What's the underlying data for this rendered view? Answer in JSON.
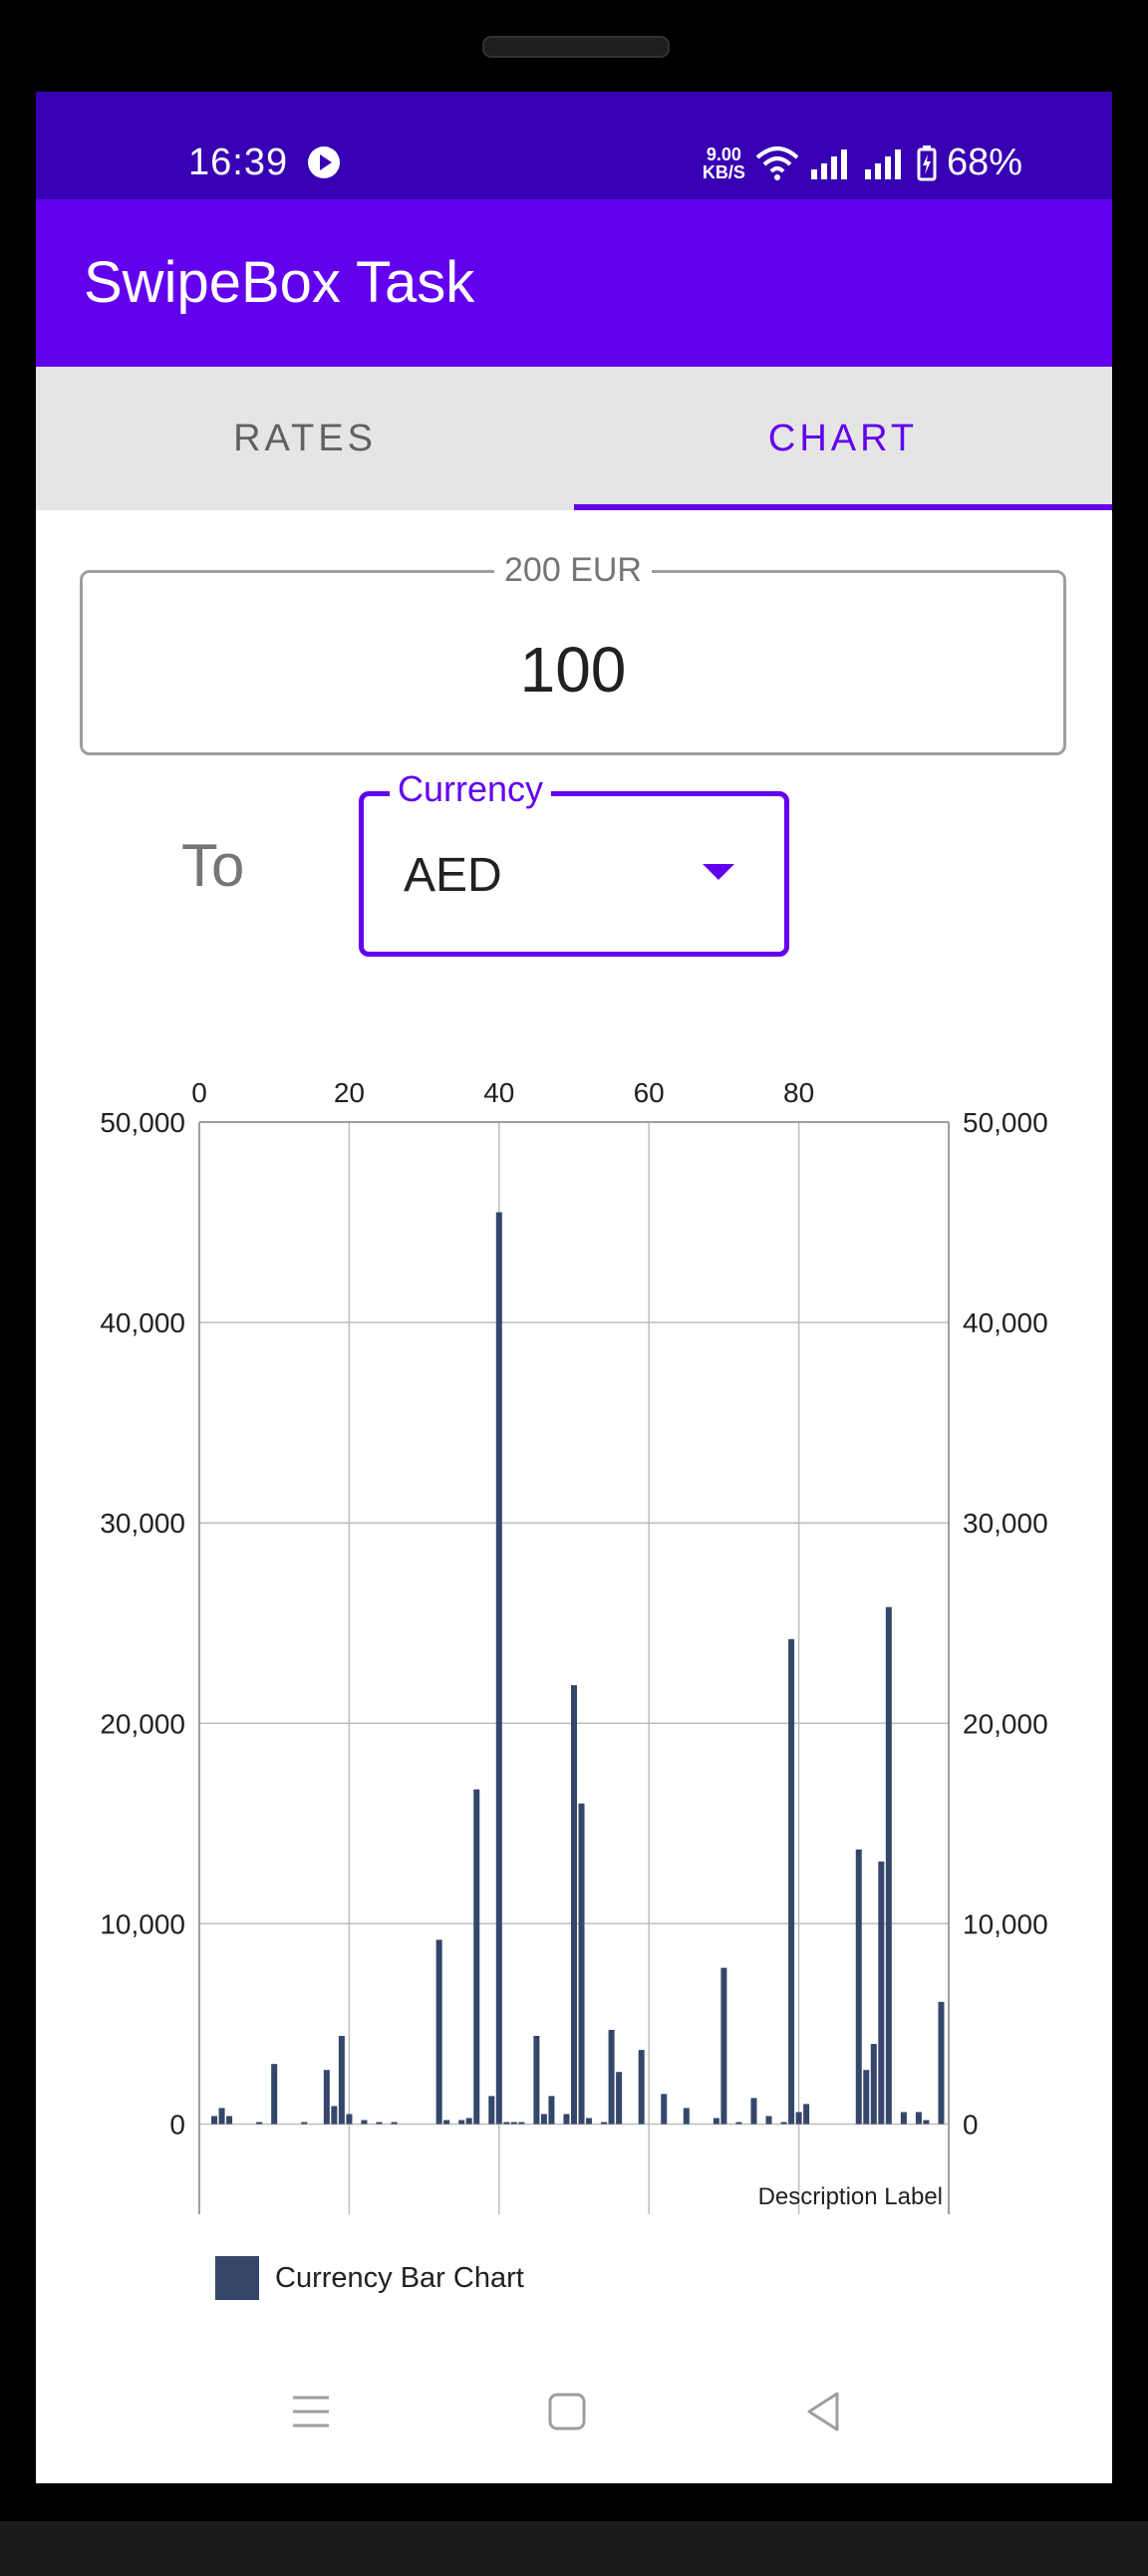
{
  "status_bar": {
    "time": "16:39",
    "net_speed_value": "9.00",
    "net_speed_unit": "KB/S",
    "battery": "68%"
  },
  "app": {
    "title": "SwipeBox Task",
    "primary_color": "#6200ee",
    "status_color": "#3700b3"
  },
  "tabs": [
    {
      "label": "RATES",
      "selected": false
    },
    {
      "label": "CHART",
      "selected": true
    }
  ],
  "amount_field": {
    "label": "200 EUR",
    "value": "100"
  },
  "to_label": "To",
  "currency_field": {
    "label": "Currency",
    "value": "AED"
  },
  "chart_data": {
    "type": "bar",
    "x_ticks": [
      0,
      20,
      40,
      60,
      80
    ],
    "y_ticks_labels": [
      "50,000",
      "40,000",
      "30,000",
      "20,000",
      "10,000",
      "0"
    ],
    "y_ticks": [
      50000,
      40000,
      30000,
      20000,
      10000,
      0
    ],
    "xlim": [
      0,
      100
    ],
    "ylim": [
      -4500,
      50000
    ],
    "description": "Description Label",
    "bar_color": "#34476b",
    "series": [
      {
        "name": "Currency Bar Chart",
        "x": [
          2,
          3,
          4,
          8,
          10,
          14,
          17,
          18,
          19,
          20,
          22,
          24,
          26,
          32,
          33,
          35,
          36,
          37,
          39,
          40,
          41,
          42,
          43,
          45,
          46,
          47,
          49,
          50,
          51,
          52,
          54,
          55,
          56,
          59,
          62,
          65,
          69,
          70,
          72,
          74,
          76,
          78,
          79,
          80,
          81,
          88,
          89,
          90,
          91,
          92,
          94,
          96,
          97,
          99
        ],
        "values": [
          400,
          800,
          400,
          100,
          3000,
          100,
          2700,
          900,
          4400,
          500,
          200,
          100,
          100,
          9200,
          200,
          200,
          300,
          16700,
          1400,
          45500,
          100,
          100,
          100,
          4400,
          500,
          1400,
          500,
          21900,
          16000,
          300,
          100,
          4700,
          2600,
          3700,
          1500,
          800,
          300,
          7800,
          100,
          1300,
          400,
          100,
          24200,
          600,
          1000,
          13700,
          2700,
          4000,
          13100,
          25800,
          600,
          600,
          200,
          6100
        ]
      }
    ],
    "legend": "bottom-left",
    "grid": true
  },
  "nav": {
    "menu": "menu-icon",
    "home": "home-icon",
    "back": "back-icon"
  }
}
